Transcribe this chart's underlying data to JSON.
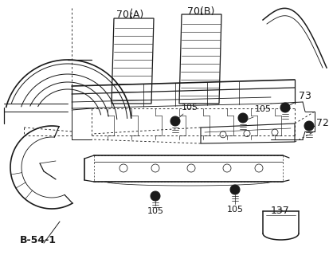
{
  "background_color": "#ffffff",
  "line_color": "#1a1a1a",
  "lw": 0.9,
  "labels": {
    "70A": "70(A)",
    "70B": "70(B)",
    "73": "73",
    "72": "72",
    "105a": "105",
    "105b": "105",
    "105c": "105",
    "105d": "105",
    "137": "137",
    "B541": "B-54-1"
  }
}
